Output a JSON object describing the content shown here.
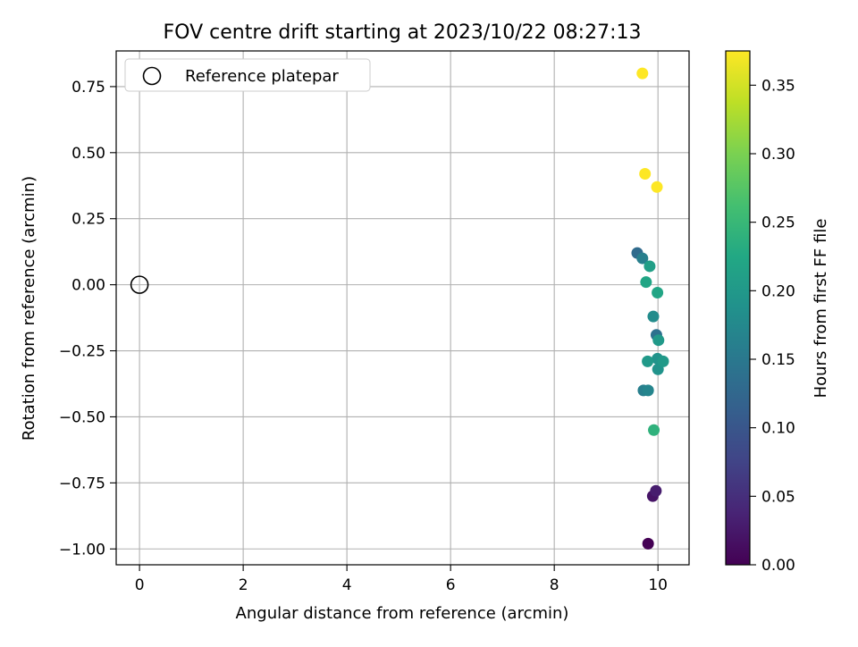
{
  "chart_data": {
    "type": "scatter",
    "title": "FOV centre drift starting at 2023/10/22 08:27:13",
    "xlabel": "Angular distance from reference (arcmin)",
    "ylabel": "Rotation from reference (arcmin)",
    "xlim": [
      -0.45,
      10.6
    ],
    "ylim": [
      -1.06,
      0.885
    ],
    "xticks": [
      0,
      2,
      4,
      6,
      8,
      10
    ],
    "xtick_labels": [
      "0",
      "2",
      "4",
      "6",
      "8",
      "10"
    ],
    "yticks": [
      0.75,
      0.5,
      0.25,
      0.0,
      -0.25,
      -0.5,
      -0.75,
      -1.0
    ],
    "ytick_labels": [
      "0.75",
      "0.50",
      "0.25",
      "0.00",
      "−0.25",
      "−0.50",
      "−0.75",
      "−1.00"
    ],
    "grid": true,
    "legend": {
      "position": "top-left",
      "entries": [
        "Reference platepar"
      ]
    },
    "reference_point": {
      "label": "Reference platepar",
      "x": 0.0,
      "y": 0.0
    },
    "colorbar": {
      "label": "Hours from first FF file",
      "colormap": "viridis",
      "range": [
        0.0,
        0.375
      ],
      "ticks": [
        0.0,
        0.05,
        0.1,
        0.15,
        0.2,
        0.25,
        0.3,
        0.35
      ],
      "tick_labels": [
        "0.00",
        "0.05",
        "0.10",
        "0.15",
        "0.20",
        "0.25",
        "0.30",
        "0.35"
      ]
    },
    "points": [
      {
        "x": 9.81,
        "y": -0.98,
        "c": 0.0
      },
      {
        "x": 9.9,
        "y": -0.8,
        "c": 0.02
      },
      {
        "x": 9.96,
        "y": -0.78,
        "c": 0.03
      },
      {
        "x": 9.6,
        "y": 0.12,
        "c": 0.13
      },
      {
        "x": 9.97,
        "y": -0.19,
        "c": 0.14
      },
      {
        "x": 9.7,
        "y": 0.1,
        "c": 0.16
      },
      {
        "x": 9.72,
        "y": -0.4,
        "c": 0.16
      },
      {
        "x": 9.81,
        "y": -0.4,
        "c": 0.17
      },
      {
        "x": 9.91,
        "y": -0.12,
        "c": 0.18
      },
      {
        "x": 9.99,
        "y": -0.28,
        "c": 0.19
      },
      {
        "x": 10.0,
        "y": -0.32,
        "c": 0.19
      },
      {
        "x": 10.1,
        "y": -0.29,
        "c": 0.2
      },
      {
        "x": 10.01,
        "y": -0.21,
        "c": 0.2
      },
      {
        "x": 9.8,
        "y": -0.29,
        "c": 0.2
      },
      {
        "x": 9.84,
        "y": 0.07,
        "c": 0.21
      },
      {
        "x": 9.99,
        "y": -0.03,
        "c": 0.22
      },
      {
        "x": 9.77,
        "y": 0.01,
        "c": 0.22
      },
      {
        "x": 9.92,
        "y": -0.55,
        "c": 0.24
      },
      {
        "x": 9.7,
        "y": 0.8,
        "c": 0.375
      },
      {
        "x": 9.75,
        "y": 0.42,
        "c": 0.375
      },
      {
        "x": 9.98,
        "y": 0.37,
        "c": 0.375
      }
    ]
  }
}
